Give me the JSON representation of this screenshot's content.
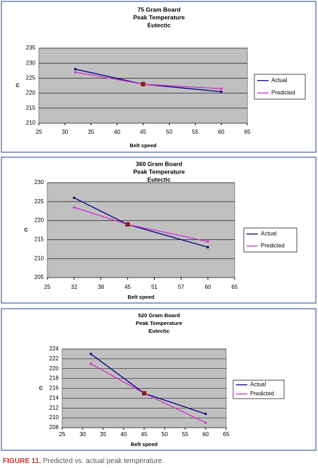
{
  "chart_data": [
    {
      "type": "line",
      "title": [
        "75 Gram Board",
        "Peak Temperature",
        "Eutectic"
      ],
      "x_label": "Belt speed",
      "y_label": "C",
      "x": [
        32,
        45,
        60
      ],
      "series": [
        {
          "name": "Actual",
          "color": "#000080",
          "values": [
            228,
            223,
            220.5
          ]
        },
        {
          "name": "Predicted",
          "color": "#cc33cc",
          "values": [
            227,
            223,
            221.5
          ]
        }
      ],
      "center_marker_color": "#8b1a1a",
      "xlim": [
        25,
        65
      ],
      "xticks": [
        25,
        30,
        35,
        40,
        45,
        50,
        55,
        60,
        65
      ],
      "ylim": [
        210,
        235
      ],
      "yticks": [
        210,
        215,
        220,
        225,
        230,
        235
      ],
      "grid": true,
      "legend": "right"
    },
    {
      "type": "line",
      "title": [
        "360 Gram Board",
        "Peak Temperature",
        "Eutectic"
      ],
      "x_label": "Belt speed",
      "y_label": "C",
      "categories": [
        "25",
        "32",
        "38",
        "45",
        "51",
        "57",
        "60",
        "65"
      ],
      "connect_gaps": true,
      "series": [
        {
          "name": "Actual",
          "color": "#000080",
          "values": [
            null,
            226,
            null,
            219,
            null,
            null,
            213,
            null
          ]
        },
        {
          "name": "Predicted",
          "color": "#cc33cc",
          "values": [
            null,
            223.5,
            null,
            219,
            null,
            null,
            214.5,
            null
          ]
        }
      ],
      "center_marker_color": "#8b1a1a",
      "ylim": [
        205,
        230
      ],
      "yticks": [
        205,
        210,
        215,
        220,
        225,
        230
      ],
      "grid": true,
      "legend": "right"
    },
    {
      "type": "line",
      "title": [
        "520 Gram Board",
        "Peak Temperature",
        "Eutectic"
      ],
      "x_label": "Belt speed",
      "y_label": "C",
      "x": [
        32,
        45,
        60
      ],
      "series": [
        {
          "name": "Actual",
          "color": "#000080",
          "values": [
            223,
            215,
            210.8
          ]
        },
        {
          "name": "Predicted",
          "color": "#cc33cc",
          "values": [
            221,
            215,
            209
          ]
        }
      ],
      "center_marker_color": "#8b1a1a",
      "xlim": [
        25,
        65
      ],
      "xticks": [
        25,
        30,
        35,
        40,
        45,
        50,
        55,
        60,
        65
      ],
      "ylim": [
        208,
        224
      ],
      "yticks": [
        208,
        210,
        212,
        214,
        216,
        218,
        220,
        222,
        224
      ],
      "grid": true,
      "legend": "right"
    }
  ],
  "caption": {
    "label": "FIGURE 11.",
    "text": "Predicted vs. actual peak temperature."
  }
}
